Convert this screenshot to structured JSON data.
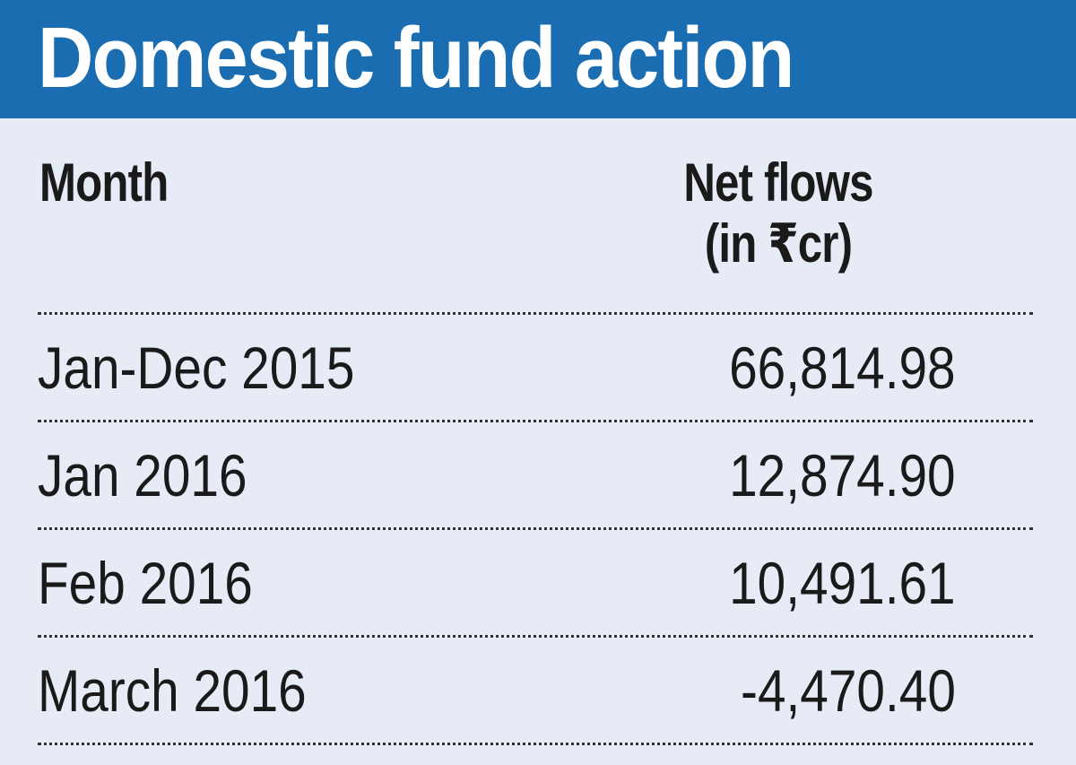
{
  "chart_data": {
    "type": "table",
    "title": "Domestic fund action",
    "columns": [
      "Month",
      "Net flows",
      "(in ₹cr)"
    ],
    "rows": [
      {
        "month": "Jan-Dec 2015",
        "net_flows": "66,814.98",
        "value": 66814.98
      },
      {
        "month": "Jan 2016",
        "net_flows": "12,874.90",
        "value": 12874.9
      },
      {
        "month": "Feb 2016",
        "net_flows": "10,491.61",
        "value": 10491.61
      },
      {
        "month": "March 2016",
        "net_flows": "-4,470.40",
        "value": -4470.4
      }
    ]
  },
  "colors": {
    "header_bg": "#1a6db0",
    "title_text": "#ffffff",
    "page_bg": "#e6ebf5",
    "text": "#1a1a1a"
  }
}
